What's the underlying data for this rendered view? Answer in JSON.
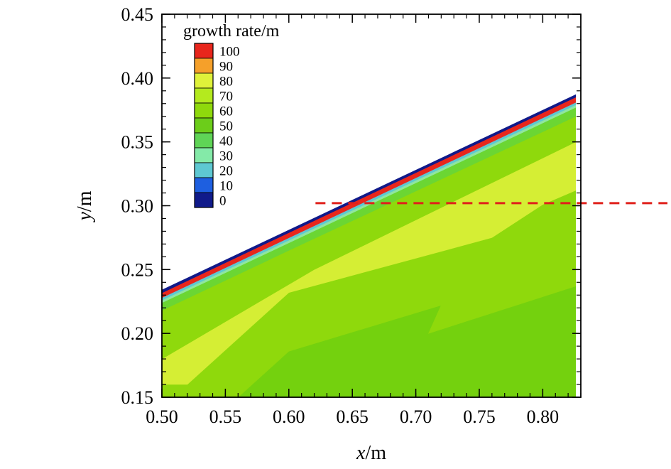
{
  "chart_data": {
    "type": "heatmap",
    "title": "",
    "xlabel": {
      "var": "x",
      "unit": "/m"
    },
    "ylabel": {
      "var": "y",
      "unit": "/m"
    },
    "xlim": [
      0.5,
      0.83
    ],
    "ylim": [
      0.15,
      0.45
    ],
    "xticks": [
      "0.50",
      "0.55",
      "0.60",
      "0.65",
      "0.70",
      "0.75",
      "0.80"
    ],
    "yticks": [
      "0.15",
      "0.20",
      "0.25",
      "0.30",
      "0.35",
      "0.40",
      "0.45"
    ],
    "legend": {
      "title": "growth rate/m",
      "position": "top-left",
      "levels": [
        {
          "label": "100",
          "color": "#e8261c"
        },
        {
          "label": "90",
          "color": "#f5a02a"
        },
        {
          "label": "80",
          "color": "#dff23a"
        },
        {
          "label": "70",
          "color": "#b4ea1e"
        },
        {
          "label": "60",
          "color": "#8fd90c"
        },
        {
          "label": "50",
          "color": "#6ccd1a"
        },
        {
          "label": "40",
          "color": "#5fd456"
        },
        {
          "label": "30",
          "color": "#84eaa8"
        },
        {
          "label": "20",
          "color": "#5ec8d2"
        },
        {
          "label": "10",
          "color": "#1e5fe0"
        },
        {
          "label": "0",
          "color": "#101a8a"
        }
      ]
    },
    "wall": {
      "x": [
        0.5,
        0.826
      ],
      "y": [
        0.232,
        0.386
      ]
    },
    "contours": [
      {
        "value": 50,
        "color": "#74d10e",
        "polygon": [
          [
            0.56,
            0.15
          ],
          [
            0.826,
            0.15
          ],
          [
            0.826,
            0.237
          ],
          [
            0.71,
            0.2
          ],
          [
            0.72,
            0.222
          ],
          [
            0.6,
            0.186
          ],
          [
            0.56,
            0.15
          ]
        ]
      },
      {
        "value": 60,
        "color": "#8fd90c",
        "polygon": [
          [
            0.5,
            0.15
          ],
          [
            0.56,
            0.15
          ],
          [
            0.6,
            0.186
          ],
          [
            0.72,
            0.222
          ],
          [
            0.71,
            0.2
          ],
          [
            0.826,
            0.237
          ],
          [
            0.826,
            0.312
          ],
          [
            0.8,
            0.301
          ],
          [
            0.76,
            0.275
          ],
          [
            0.6,
            0.232
          ],
          [
            0.52,
            0.16
          ],
          [
            0.5,
            0.16
          ]
        ]
      },
      {
        "value": 70,
        "color": "#d5ee34",
        "polygon": [
          [
            0.5,
            0.18
          ],
          [
            0.62,
            0.25
          ],
          [
            0.826,
            0.35
          ],
          [
            0.826,
            0.312
          ],
          [
            0.8,
            0.301
          ],
          [
            0.76,
            0.275
          ],
          [
            0.6,
            0.232
          ],
          [
            0.52,
            0.16
          ],
          [
            0.5,
            0.16
          ]
        ]
      },
      {
        "value": 60,
        "color": "#8fd90c",
        "polygon": [
          [
            0.5,
            0.193
          ],
          [
            0.5,
            0.18
          ],
          [
            0.62,
            0.25
          ],
          [
            0.826,
            0.35
          ],
          [
            0.826,
            0.37
          ],
          [
            0.6,
            0.265
          ],
          [
            0.5,
            0.218
          ]
        ]
      },
      {
        "value": 40,
        "color": "#6bd633",
        "polygon": [
          [
            0.5,
            0.218
          ],
          [
            0.6,
            0.265
          ],
          [
            0.826,
            0.37
          ],
          [
            0.826,
            0.377
          ],
          [
            0.5,
            0.224
          ]
        ]
      },
      {
        "value": 30,
        "color": "#8fe6a0",
        "polygon": [
          [
            0.5,
            0.224
          ],
          [
            0.826,
            0.377
          ],
          [
            0.826,
            0.379
          ],
          [
            0.5,
            0.226
          ]
        ]
      },
      {
        "value": 20,
        "color": "#5ec8d2",
        "polygon": [
          [
            0.5,
            0.226
          ],
          [
            0.826,
            0.379
          ],
          [
            0.826,
            0.381
          ],
          [
            0.5,
            0.228
          ]
        ]
      },
      {
        "value": 100,
        "color": "#e8261c",
        "polygon": [
          [
            0.5,
            0.228
          ],
          [
            0.826,
            0.381
          ],
          [
            0.826,
            0.385
          ],
          [
            0.5,
            0.232
          ]
        ]
      },
      {
        "value": 0,
        "color": "#101a8a",
        "polygon": [
          [
            0.5,
            0.232
          ],
          [
            0.826,
            0.385
          ],
          [
            0.826,
            0.387
          ],
          [
            0.5,
            0.234
          ]
        ]
      }
    ],
    "reference_line": {
      "y": 0.302,
      "x": [
        0.621,
        0.9
      ],
      "color": "#e0201b",
      "style": "dashed"
    },
    "grid": false
  }
}
